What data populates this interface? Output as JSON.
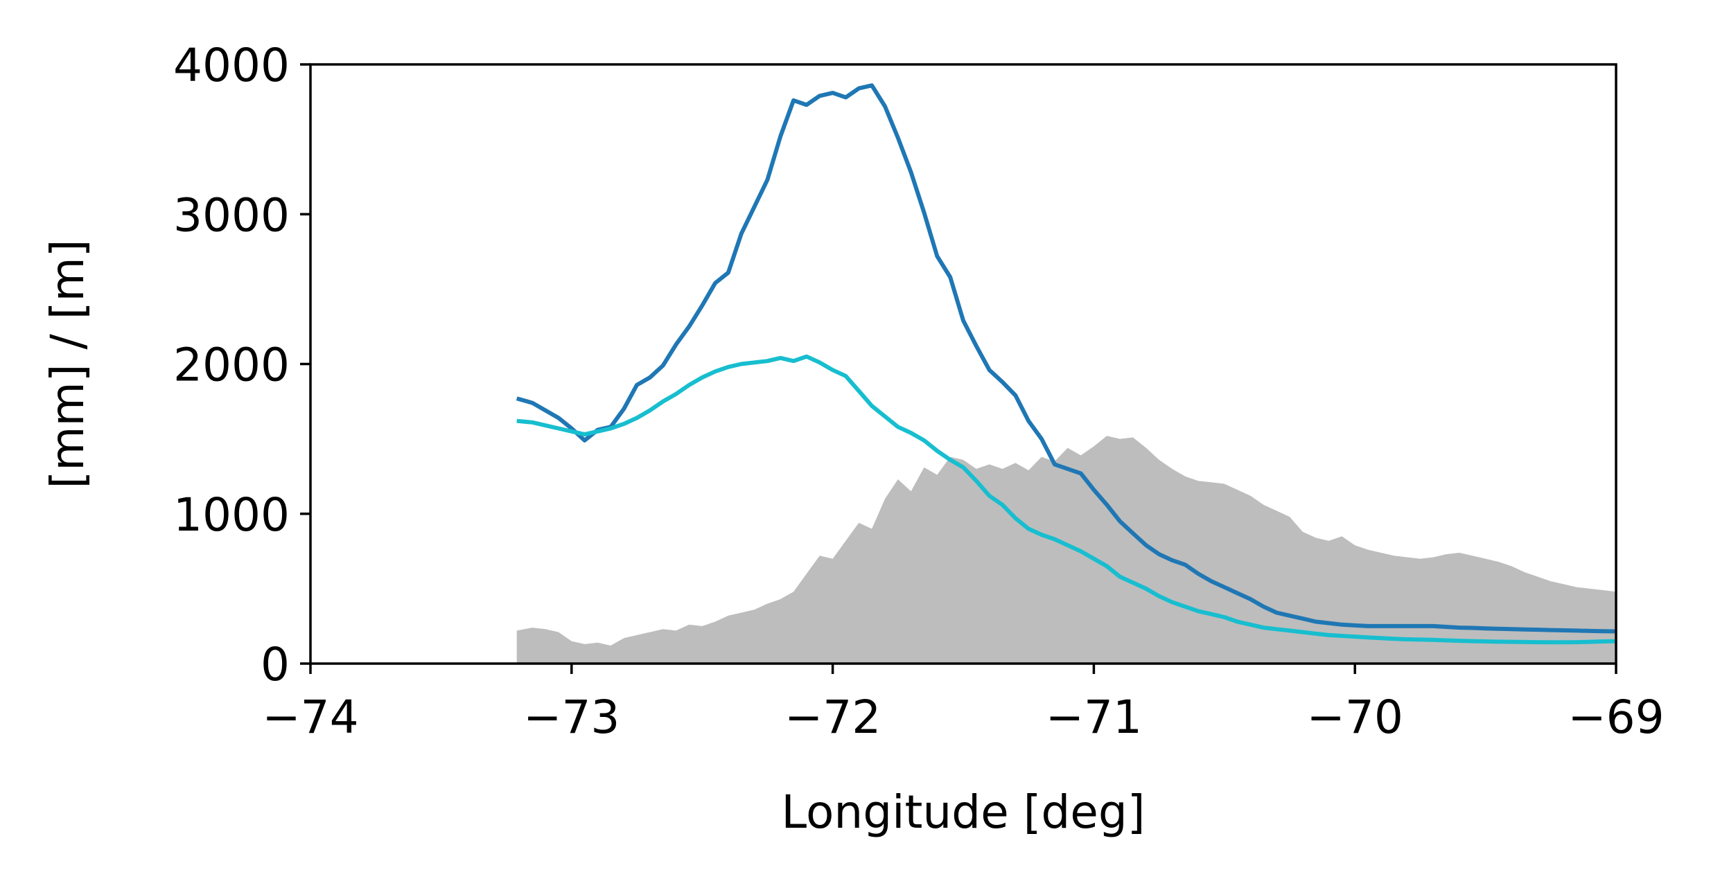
{
  "chart_data": {
    "type": "area",
    "xlabel": "Longitude [deg]",
    "ylabel": "[mm] / [m]",
    "xlim": [
      -74,
      -69
    ],
    "ylim": [
      0,
      4000
    ],
    "xticks": [
      -74,
      -73,
      -72,
      -71,
      -70,
      -69
    ],
    "xtick_labels": [
      "−74",
      "−73",
      "−72",
      "−71",
      "−70",
      "−69"
    ],
    "yticks": [
      0,
      1000,
      2000,
      3000,
      4000
    ],
    "ytick_labels": [
      "0",
      "1000",
      "2000",
      "3000",
      "4000"
    ],
    "grid": false,
    "legend": "none",
    "series": [
      {
        "kind": "area",
        "color": "#bdbdbd",
        "x": [
          -73.21,
          -73.15,
          -73.1,
          -73.05,
          -73.0,
          -72.95,
          -72.9,
          -72.85,
          -72.8,
          -72.75,
          -72.7,
          -72.65,
          -72.6,
          -72.55,
          -72.5,
          -72.45,
          -72.4,
          -72.35,
          -72.3,
          -72.25,
          -72.2,
          -72.15,
          -72.1,
          -72.05,
          -72.0,
          -71.95,
          -71.9,
          -71.85,
          -71.8,
          -71.75,
          -71.7,
          -71.65,
          -71.6,
          -71.55,
          -71.5,
          -71.45,
          -71.4,
          -71.35,
          -71.3,
          -71.25,
          -71.2,
          -71.15,
          -71.1,
          -71.05,
          -71.0,
          -70.95,
          -70.9,
          -70.85,
          -70.8,
          -70.75,
          -70.7,
          -70.65,
          -70.6,
          -70.55,
          -70.5,
          -70.45,
          -70.4,
          -70.35,
          -70.3,
          -70.25,
          -70.2,
          -70.15,
          -70.1,
          -70.05,
          -70.0,
          -69.95,
          -69.9,
          -69.85,
          -69.8,
          -69.75,
          -69.7,
          -69.65,
          -69.6,
          -69.55,
          -69.5,
          -69.45,
          -69.4,
          -69.35,
          -69.3,
          -69.25,
          -69.2,
          -69.15,
          -69.1,
          -69.05,
          -69.0
        ],
        "y": [
          220,
          240,
          230,
          210,
          150,
          130,
          140,
          120,
          170,
          190,
          210,
          230,
          220,
          260,
          250,
          280,
          320,
          340,
          360,
          400,
          430,
          480,
          600,
          720,
          700,
          820,
          940,
          900,
          1100,
          1230,
          1150,
          1310,
          1260,
          1380,
          1360,
          1300,
          1330,
          1300,
          1340,
          1290,
          1380,
          1350,
          1440,
          1390,
          1450,
          1520,
          1500,
          1510,
          1440,
          1360,
          1300,
          1250,
          1220,
          1210,
          1200,
          1160,
          1120,
          1060,
          1020,
          980,
          880,
          840,
          820,
          850,
          790,
          760,
          740,
          720,
          710,
          700,
          710,
          730,
          740,
          720,
          700,
          680,
          650,
          610,
          580,
          550,
          530,
          510,
          500,
          490,
          480
        ]
      },
      {
        "kind": "line",
        "color": "#1f77b4",
        "x": [
          -73.21,
          -73.15,
          -73.1,
          -73.05,
          -73.0,
          -72.95,
          -72.9,
          -72.85,
          -72.8,
          -72.75,
          -72.7,
          -72.65,
          -72.6,
          -72.55,
          -72.5,
          -72.45,
          -72.4,
          -72.35,
          -72.3,
          -72.25,
          -72.2,
          -72.15,
          -72.1,
          -72.05,
          -72.0,
          -71.95,
          -71.9,
          -71.85,
          -71.8,
          -71.75,
          -71.7,
          -71.65,
          -71.6,
          -71.55,
          -71.5,
          -71.45,
          -71.4,
          -71.35,
          -71.3,
          -71.25,
          -71.2,
          -71.15,
          -71.1,
          -71.05,
          -71.0,
          -70.95,
          -70.9,
          -70.85,
          -70.8,
          -70.75,
          -70.7,
          -70.65,
          -70.6,
          -70.55,
          -70.5,
          -70.45,
          -70.4,
          -70.35,
          -70.3,
          -70.25,
          -70.2,
          -70.15,
          -70.1,
          -70.05,
          -70.0,
          -69.95,
          -69.9,
          -69.85,
          -69.8,
          -69.75,
          -69.7,
          -69.65,
          -69.6,
          -69.55,
          -69.5,
          -69.45,
          -69.4,
          -69.35,
          -69.3,
          -69.25,
          -69.2,
          -69.15,
          -69.1,
          -69.05,
          -69.0
        ],
        "y": [
          1770,
          1740,
          1690,
          1640,
          1570,
          1490,
          1560,
          1580,
          1700,
          1860,
          1910,
          1990,
          2130,
          2250,
          2390,
          2540,
          2610,
          2870,
          3050,
          3230,
          3520,
          3760,
          3730,
          3790,
          3810,
          3780,
          3840,
          3860,
          3720,
          3510,
          3280,
          3010,
          2720,
          2580,
          2290,
          2120,
          1960,
          1880,
          1790,
          1620,
          1500,
          1330,
          1300,
          1270,
          1160,
          1060,
          950,
          870,
          790,
          730,
          690,
          660,
          600,
          550,
          510,
          470,
          430,
          380,
          340,
          320,
          300,
          280,
          270,
          260,
          255,
          250,
          250,
          250,
          250,
          250,
          250,
          245,
          240,
          238,
          235,
          232,
          230,
          228,
          226,
          224,
          222,
          220,
          218,
          216,
          215
        ]
      },
      {
        "kind": "line",
        "color": "#17becf",
        "x": [
          -73.21,
          -73.15,
          -73.1,
          -73.05,
          -73.0,
          -72.95,
          -72.9,
          -72.85,
          -72.8,
          -72.75,
          -72.7,
          -72.65,
          -72.6,
          -72.55,
          -72.5,
          -72.45,
          -72.4,
          -72.35,
          -72.3,
          -72.25,
          -72.2,
          -72.15,
          -72.1,
          -72.05,
          -72.0,
          -71.95,
          -71.9,
          -71.85,
          -71.8,
          -71.75,
          -71.7,
          -71.65,
          -71.6,
          -71.55,
          -71.5,
          -71.45,
          -71.4,
          -71.35,
          -71.3,
          -71.25,
          -71.2,
          -71.15,
          -71.1,
          -71.05,
          -71.0,
          -70.95,
          -70.9,
          -70.85,
          -70.8,
          -70.75,
          -70.7,
          -70.65,
          -70.6,
          -70.55,
          -70.5,
          -70.45,
          -70.4,
          -70.35,
          -70.3,
          -70.25,
          -70.2,
          -70.15,
          -70.1,
          -70.05,
          -70.0,
          -69.95,
          -69.9,
          -69.85,
          -69.8,
          -69.75,
          -69.7,
          -69.65,
          -69.6,
          -69.55,
          -69.5,
          -69.45,
          -69.4,
          -69.35,
          -69.3,
          -69.25,
          -69.2,
          -69.15,
          -69.1,
          -69.05,
          -69.0
        ],
        "y": [
          1620,
          1610,
          1590,
          1570,
          1550,
          1530,
          1550,
          1570,
          1600,
          1640,
          1690,
          1750,
          1800,
          1860,
          1910,
          1950,
          1980,
          2000,
          2010,
          2020,
          2040,
          2020,
          2050,
          2010,
          1960,
          1920,
          1820,
          1720,
          1650,
          1580,
          1540,
          1490,
          1420,
          1360,
          1310,
          1220,
          1120,
          1060,
          970,
          900,
          860,
          830,
          790,
          750,
          700,
          650,
          580,
          540,
          500,
          450,
          410,
          380,
          350,
          330,
          310,
          280,
          260,
          240,
          230,
          220,
          210,
          200,
          190,
          185,
          180,
          175,
          170,
          165,
          162,
          160,
          158,
          155,
          152,
          150,
          148,
          146,
          145,
          144,
          143,
          142,
          142,
          143,
          145,
          148,
          150
        ]
      }
    ]
  }
}
